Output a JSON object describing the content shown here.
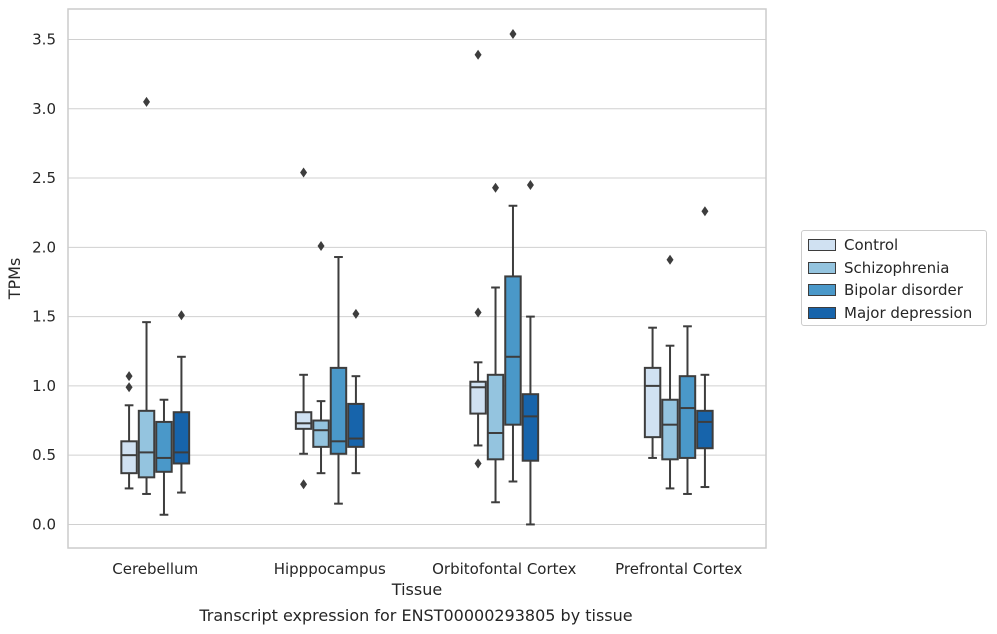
{
  "caption": "Transcript expression for ENST00000293805 by tissue",
  "colors": {
    "Control": "#d0e1f2",
    "Schizophrenia": "#94c4df",
    "Bipolar disorder": "#4a98c9",
    "Major depression": "#1764ab",
    "line": "#3d3d3d",
    "grid": "#d0d0d0",
    "frame": "#cccccc"
  },
  "chart_data": {
    "type": "box",
    "xlabel": "Tissue",
    "ylabel": "TPMs",
    "ylim": [
      -0.17,
      3.72
    ],
    "yticks": [
      "0.0",
      "0.5",
      "1.0",
      "1.5",
      "2.0",
      "2.5",
      "3.0",
      "3.5"
    ],
    "categories": [
      "Cerebellum",
      "Hipppocampus",
      "Orbitofontal Cortex",
      "Prefrontal Cortex"
    ],
    "grid": "horizontal",
    "legend_position": "right",
    "series": [
      {
        "name": "Control",
        "boxes": [
          {
            "whislo": 0.26,
            "q1": 0.37,
            "med": 0.5,
            "q3": 0.6,
            "whishi": 0.86,
            "fliers": [
              0.99,
              1.07
            ]
          },
          {
            "whislo": 0.51,
            "q1": 0.69,
            "med": 0.73,
            "q3": 0.81,
            "whishi": 1.08,
            "fliers": [
              0.29,
              2.54
            ]
          },
          {
            "whislo": 0.57,
            "q1": 0.8,
            "med": 0.99,
            "q3": 1.03,
            "whishi": 1.17,
            "fliers": [
              0.44,
              1.53,
              3.39
            ]
          },
          {
            "whislo": 0.48,
            "q1": 0.63,
            "med": 1.0,
            "q3": 1.13,
            "whishi": 1.42,
            "fliers": []
          }
        ]
      },
      {
        "name": "Schizophrenia",
        "boxes": [
          {
            "whislo": 0.22,
            "q1": 0.34,
            "med": 0.52,
            "q3": 0.82,
            "whishi": 1.46,
            "fliers": [
              3.05
            ]
          },
          {
            "whislo": 0.37,
            "q1": 0.56,
            "med": 0.68,
            "q3": 0.75,
            "whishi": 0.89,
            "fliers": [
              2.01
            ]
          },
          {
            "whislo": 0.16,
            "q1": 0.47,
            "med": 0.66,
            "q3": 1.08,
            "whishi": 1.71,
            "fliers": [
              2.43
            ]
          },
          {
            "whislo": 0.26,
            "q1": 0.47,
            "med": 0.72,
            "q3": 0.9,
            "whishi": 1.29,
            "fliers": [
              1.91
            ]
          }
        ]
      },
      {
        "name": "Bipolar disorder",
        "boxes": [
          {
            "whislo": 0.07,
            "q1": 0.38,
            "med": 0.48,
            "q3": 0.74,
            "whishi": 0.9,
            "fliers": []
          },
          {
            "whislo": 0.15,
            "q1": 0.51,
            "med": 0.6,
            "q3": 1.13,
            "whishi": 1.93,
            "fliers": []
          },
          {
            "whislo": 0.31,
            "q1": 0.72,
            "med": 1.21,
            "q3": 1.79,
            "whishi": 2.3,
            "fliers": [
              3.54
            ]
          },
          {
            "whislo": 0.22,
            "q1": 0.48,
            "med": 0.84,
            "q3": 1.07,
            "whishi": 1.43,
            "fliers": []
          }
        ]
      },
      {
        "name": "Major depression",
        "boxes": [
          {
            "whislo": 0.23,
            "q1": 0.44,
            "med": 0.52,
            "q3": 0.81,
            "whishi": 1.21,
            "fliers": [
              1.51
            ]
          },
          {
            "whislo": 0.37,
            "q1": 0.56,
            "med": 0.62,
            "q3": 0.87,
            "whishi": 1.07,
            "fliers": [
              1.52
            ]
          },
          {
            "whislo": 0.0,
            "q1": 0.46,
            "med": 0.78,
            "q3": 0.94,
            "whishi": 1.5,
            "fliers": [
              2.45
            ]
          },
          {
            "whislo": 0.27,
            "q1": 0.55,
            "med": 0.74,
            "q3": 0.82,
            "whishi": 1.08,
            "fliers": [
              2.26
            ]
          }
        ]
      }
    ]
  }
}
